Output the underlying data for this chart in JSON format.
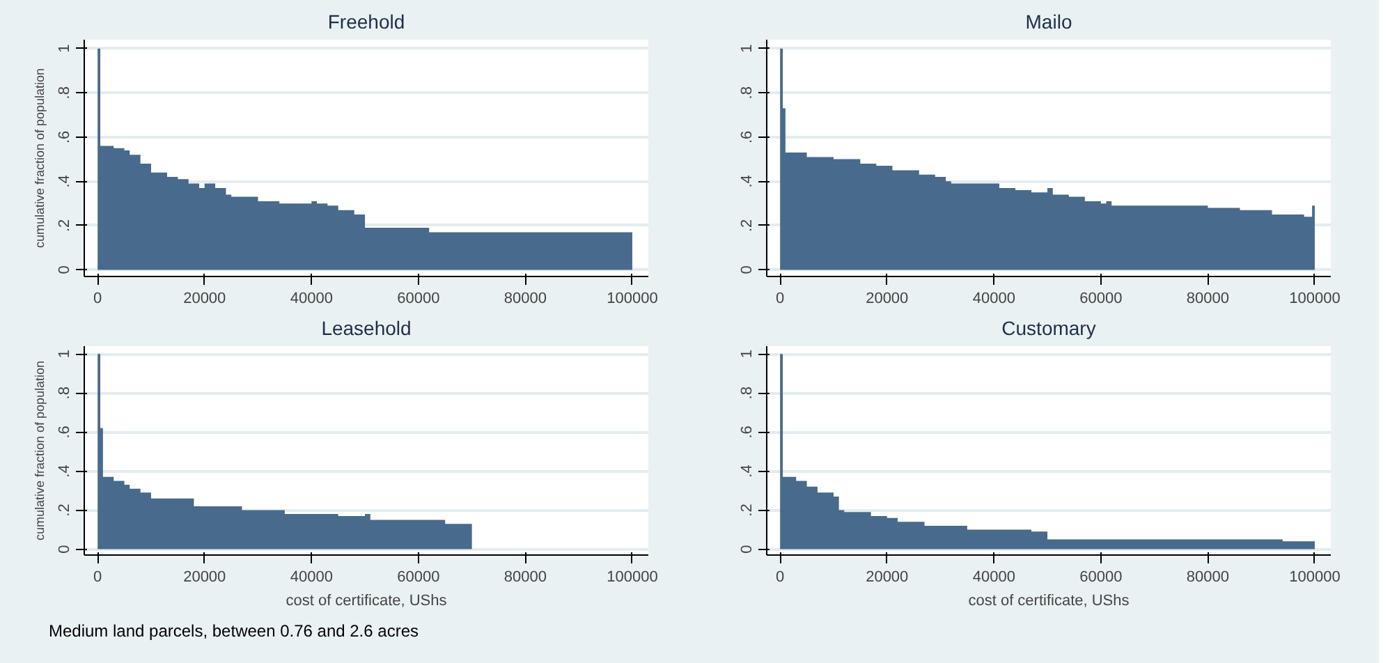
{
  "chart_data": [
    {
      "type": "area",
      "title": "Freehold",
      "ylabel": "cumulative fraction of population",
      "color": "#486a8c",
      "grid": "y",
      "xlim": [
        -2500,
        103000
      ],
      "ylim": [
        -0.03,
        1.04
      ],
      "xticks": [
        0,
        20000,
        40000,
        60000,
        80000,
        100000
      ],
      "yticks": [
        0,
        {
          "value": 0.2,
          "label": ".2"
        },
        {
          "value": 0.4,
          "label": ".4"
        },
        {
          "value": 0.6,
          "label": ".6"
        },
        {
          "value": 0.8,
          "label": ".8"
        },
        1
      ],
      "x": [
        0,
        500,
        3000,
        5000,
        6000,
        8000,
        10000,
        13000,
        15000,
        17000,
        19000,
        20000,
        22000,
        24000,
        25000,
        30000,
        34000,
        40000,
        41000,
        43000,
        45000,
        48000,
        50000,
        62000,
        100000
      ],
      "values": [
        1,
        0.56,
        0.55,
        0.54,
        0.52,
        0.48,
        0.44,
        0.42,
        0.41,
        0.39,
        0.37,
        0.39,
        0.37,
        0.34,
        0.33,
        0.31,
        0.3,
        0.31,
        0.3,
        0.29,
        0.27,
        0.25,
        0.19,
        0.17,
        0.17
      ]
    },
    {
      "type": "area",
      "title": "Mailo",
      "color": "#486a8c",
      "grid": "y",
      "xlim": [
        -2500,
        103000
      ],
      "ylim": [
        -0.03,
        1.04
      ],
      "xticks": [
        0,
        20000,
        40000,
        60000,
        80000,
        100000
      ],
      "yticks": [
        0,
        {
          "value": 0.2,
          "label": ".2"
        },
        {
          "value": 0.4,
          "label": ".4"
        },
        {
          "value": 0.6,
          "label": ".6"
        },
        {
          "value": 0.8,
          "label": ".8"
        },
        1
      ],
      "x": [
        0,
        500,
        1000,
        5000,
        10000,
        15000,
        18000,
        21000,
        26000,
        29000,
        31000,
        32000,
        41000,
        44000,
        47000,
        50000,
        51000,
        54000,
        57000,
        60000,
        61000,
        62000,
        80000,
        86000,
        92000,
        98000,
        99500,
        100000
      ],
      "values": [
        1,
        0.73,
        0.53,
        0.51,
        0.5,
        0.48,
        0.47,
        0.45,
        0.43,
        0.42,
        0.4,
        0.39,
        0.37,
        0.36,
        0.35,
        0.37,
        0.34,
        0.33,
        0.31,
        0.3,
        0.31,
        0.29,
        0.28,
        0.27,
        0.25,
        0.24,
        0.29,
        0.29
      ]
    },
    {
      "type": "area",
      "title": "Leasehold",
      "ylabel": "cumulative fraction of population",
      "xlabel": "cost of certificate, UShs",
      "color": "#486a8c",
      "grid": "y",
      "xlim": [
        -2500,
        103000
      ],
      "ylim": [
        -0.03,
        1.04
      ],
      "xticks": [
        0,
        20000,
        40000,
        60000,
        80000,
        100000
      ],
      "yticks": [
        0,
        {
          "value": 0.2,
          "label": ".2"
        },
        {
          "value": 0.4,
          "label": ".4"
        },
        {
          "value": 0.6,
          "label": ".6"
        },
        {
          "value": 0.8,
          "label": ".8"
        },
        1
      ],
      "annotations": [
        "Medium land parcels, between 0.76 and 2.6 acres"
      ],
      "x": [
        0,
        500,
        1000,
        3000,
        5000,
        6000,
        8000,
        10000,
        18000,
        27000,
        35000,
        45000,
        50000,
        51000,
        65000,
        70000
      ],
      "values": [
        1,
        0.62,
        0.37,
        0.35,
        0.33,
        0.31,
        0.29,
        0.26,
        0.22,
        0.2,
        0.18,
        0.17,
        0.18,
        0.15,
        0.13,
        0.13
      ]
    },
    {
      "type": "area",
      "title": "Customary",
      "xlabel": "cost of certificate, UShs",
      "color": "#486a8c",
      "grid": "y",
      "xlim": [
        -2500,
        103000
      ],
      "ylim": [
        -0.03,
        1.04
      ],
      "xticks": [
        0,
        20000,
        40000,
        60000,
        80000,
        100000
      ],
      "yticks": [
        0,
        {
          "value": 0.2,
          "label": ".2"
        },
        {
          "value": 0.4,
          "label": ".4"
        },
        {
          "value": 0.6,
          "label": ".6"
        },
        {
          "value": 0.8,
          "label": ".8"
        },
        1
      ],
      "x": [
        0,
        500,
        3000,
        5000,
        7000,
        10000,
        11000,
        12000,
        17000,
        20000,
        22000,
        27000,
        35000,
        47000,
        50000,
        94000,
        100000
      ],
      "values": [
        1,
        0.37,
        0.35,
        0.32,
        0.29,
        0.27,
        0.2,
        0.19,
        0.17,
        0.16,
        0.14,
        0.12,
        0.1,
        0.09,
        0.05,
        0.04,
        0.04
      ]
    }
  ]
}
